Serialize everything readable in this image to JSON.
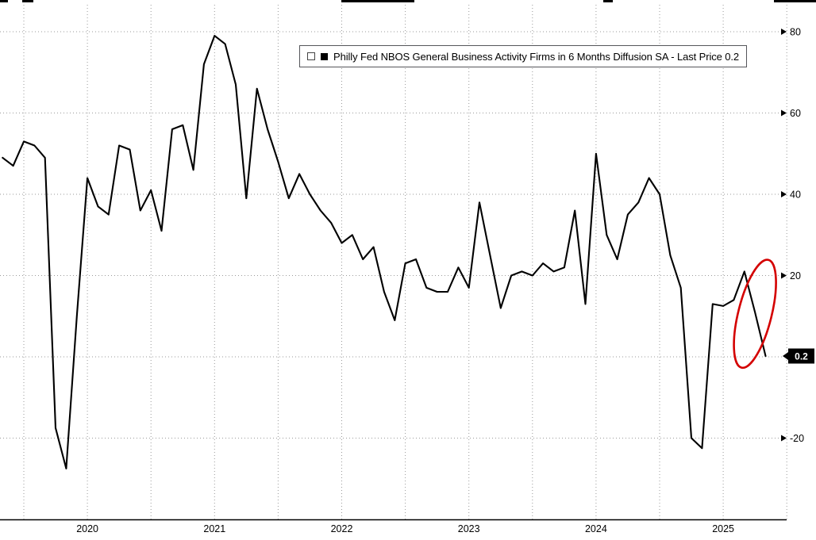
{
  "window": {
    "background": "#ffffff"
  },
  "legend": {
    "toggle_icon": "edit-box-icon",
    "series_marker_color": "#000000",
    "label": "Philly Fed NBOS General Business Activity Firms in 6 Months Diffusion SA - Last Price 0.2"
  },
  "y_axis": {
    "ticks": [
      {
        "label": "80",
        "value": 80
      },
      {
        "label": "60",
        "value": 60
      },
      {
        "label": "40",
        "value": 40
      },
      {
        "label": "20",
        "value": 20
      },
      {
        "label": "-20",
        "value": -20
      }
    ],
    "grid_values": [
      80,
      60,
      40,
      20,
      0,
      -20
    ]
  },
  "x_axis": {
    "ticks": [
      "2020",
      "2021",
      "2022",
      "2023",
      "2024",
      "2025"
    ]
  },
  "last_price": {
    "label": "0.2",
    "value": 0.2
  },
  "annotation": {
    "shape": "ellipse",
    "color": "#d40000",
    "purpose": "highlights final plunge of the series to 0.2"
  },
  "chart_data": {
    "type": "line",
    "title": "Philly Fed NBOS General Business Activity Firms in 6 Months Diffusion SA",
    "legend_position": "top-center",
    "grid": true,
    "series_color": "#000000",
    "last_price": 0.2,
    "ylim": [
      -30,
      85
    ],
    "x": [
      "2019-11",
      "2019-12",
      "2020-01",
      "2020-02",
      "2020-03",
      "2020-04",
      "2020-05",
      "2020-06",
      "2020-07",
      "2020-08",
      "2020-09",
      "2020-10",
      "2020-11",
      "2020-12",
      "2021-01",
      "2021-02",
      "2021-03",
      "2021-04",
      "2021-05",
      "2021-06",
      "2021-07",
      "2021-08",
      "2021-09",
      "2021-10",
      "2021-11",
      "2021-12",
      "2022-01",
      "2022-02",
      "2022-03",
      "2022-04",
      "2022-05",
      "2022-06",
      "2022-07",
      "2022-08",
      "2022-09",
      "2022-10",
      "2022-11",
      "2022-12",
      "2023-01",
      "2023-02",
      "2023-03",
      "2023-04",
      "2023-05",
      "2023-06",
      "2023-07",
      "2023-08",
      "2023-09",
      "2023-10",
      "2023-11",
      "2023-12",
      "2024-01",
      "2024-02",
      "2024-03",
      "2024-04",
      "2024-05",
      "2024-06",
      "2024-07",
      "2024-08",
      "2024-09",
      "2024-10",
      "2024-11",
      "2024-12",
      "2025-01",
      "2025-02",
      "2025-03",
      "2025-04",
      "2025-05",
      "2025-06",
      "2025-07",
      "2025-08",
      "2025-09",
      "2025-10",
      "2025-11"
    ],
    "values": [
      49,
      47,
      53,
      52,
      49,
      -17.5,
      -27.5,
      10,
      44,
      37,
      35,
      52,
      51,
      36,
      41,
      31,
      56,
      57,
      46,
      72,
      79,
      77,
      67,
      39,
      66,
      56,
      48,
      39,
      45,
      40,
      36,
      33,
      28,
      30,
      24,
      27,
      16,
      9,
      23,
      24,
      17,
      16,
      16,
      22,
      17,
      38,
      25,
      12,
      20,
      21,
      20,
      23,
      21,
      22,
      36,
      13,
      50,
      30,
      24,
      35,
      38,
      44,
      40,
      25,
      17,
      -20,
      -22.5,
      13,
      12.5,
      14,
      21,
      11,
      0.2
    ]
  }
}
